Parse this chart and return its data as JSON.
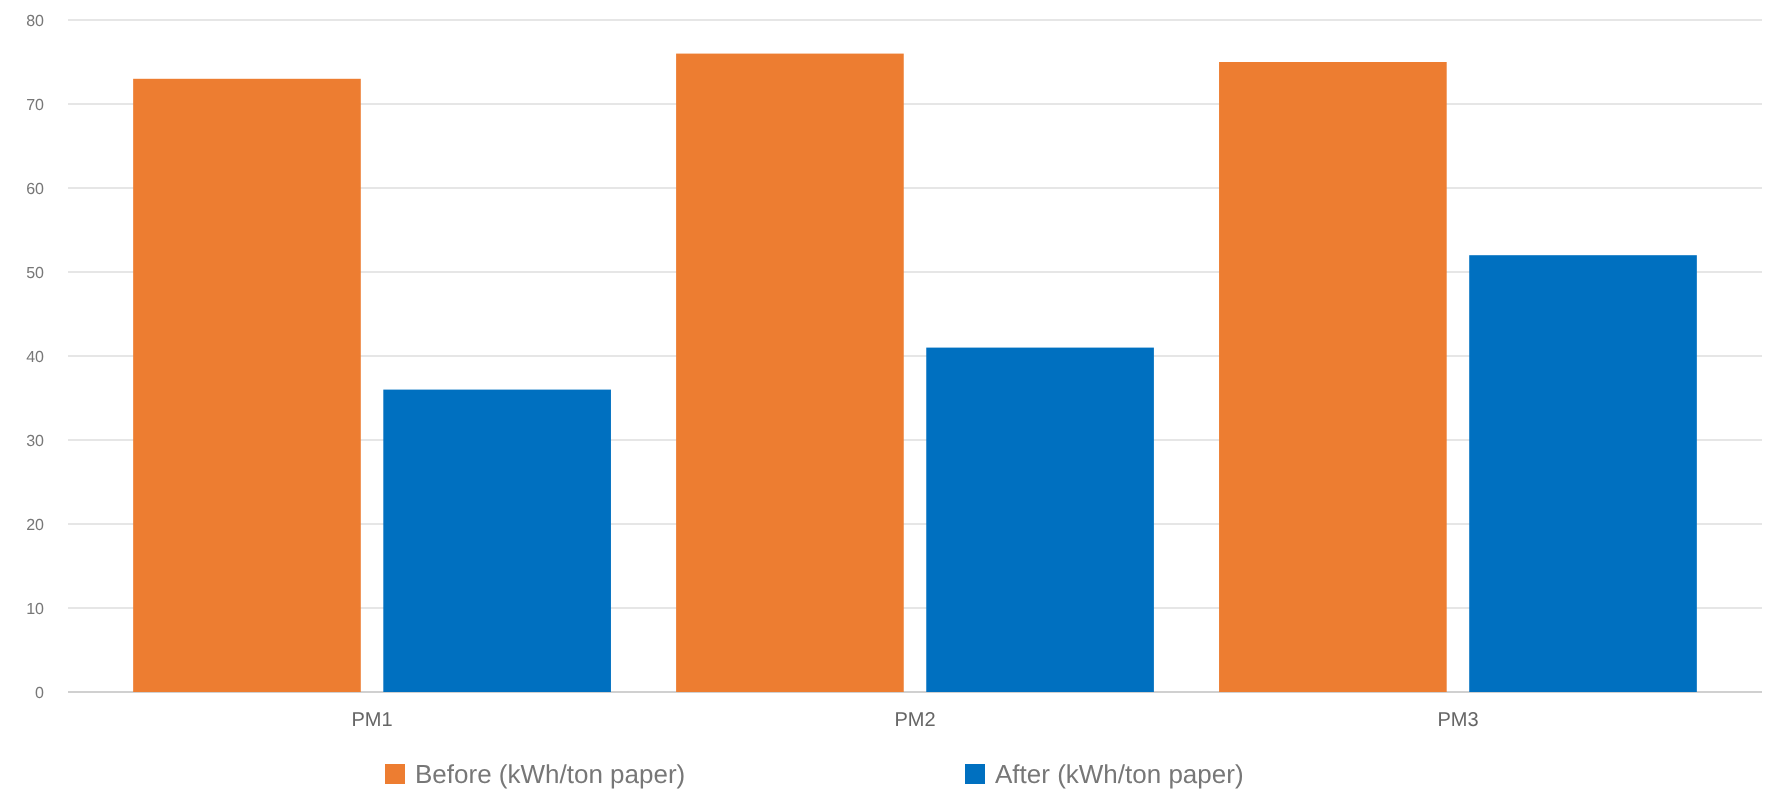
{
  "chart_data": {
    "type": "bar",
    "categories": [
      "PM1",
      "PM2",
      "PM3"
    ],
    "series": [
      {
        "name": "Before (kWh/ton paper)",
        "color": "#ed7d31",
        "values": [
          73,
          76,
          75
        ]
      },
      {
        "name": "After (kWh/ton paper)",
        "color": "#0070c0",
        "values": [
          36,
          41,
          52
        ]
      }
    ],
    "ylim": [
      0,
      80
    ],
    "yticks": [
      0,
      10,
      20,
      30,
      40,
      50,
      60,
      70,
      80
    ],
    "grid": "y",
    "legend": "bottom"
  }
}
